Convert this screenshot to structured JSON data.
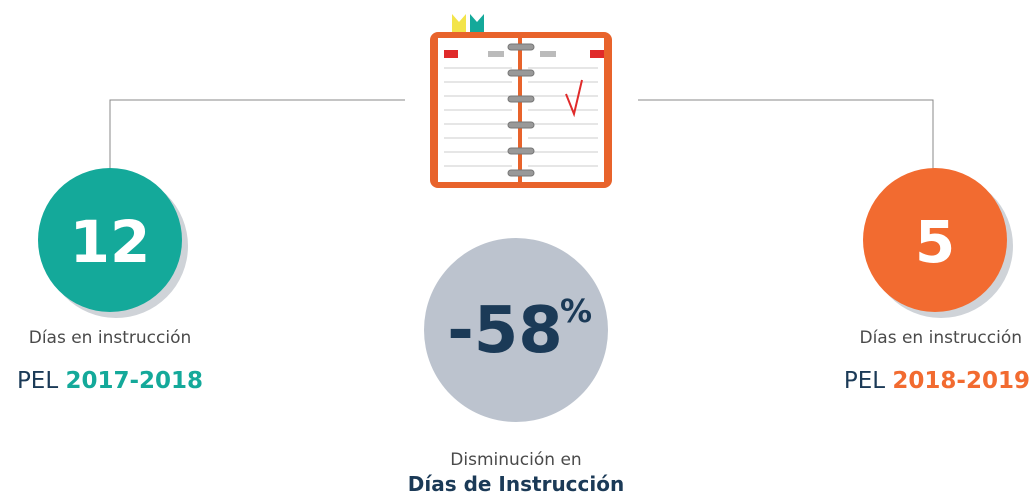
{
  "left": {
    "value": "12",
    "caption": "Días en instrucción",
    "prefix": "PEL",
    "period": "2017-2018"
  },
  "center": {
    "value": "-58",
    "unit": "%",
    "caption": "Disminución en",
    "caption_bold": "Días de Instrucción"
  },
  "right": {
    "value": "5",
    "caption": "Días en instrucción",
    "prefix": "PEL",
    "period": "2018-2019"
  }
}
